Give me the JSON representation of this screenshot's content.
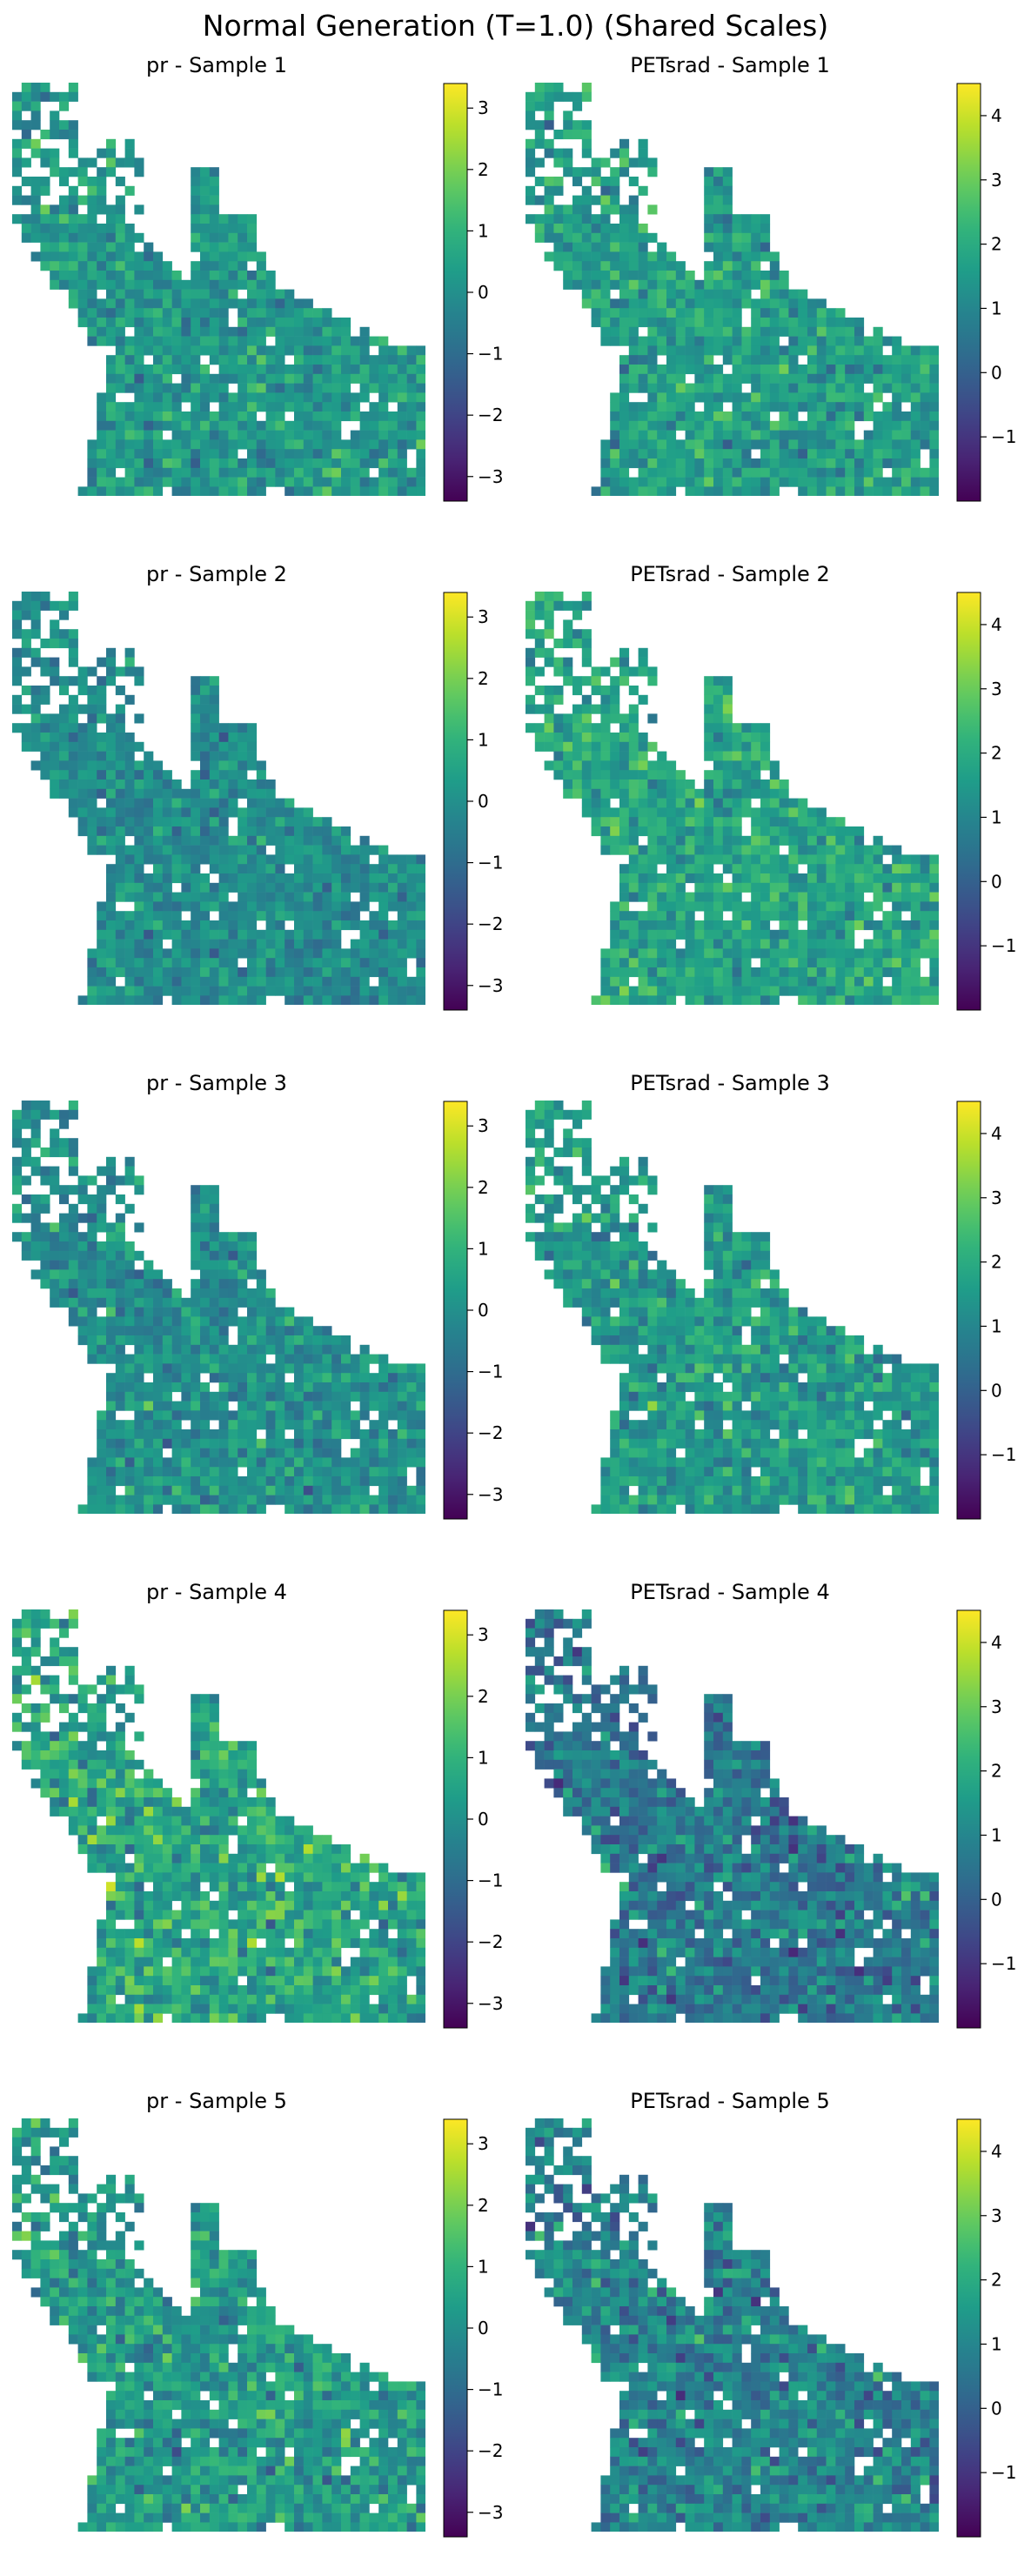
{
  "figure": {
    "title": "Normal Generation (T=1.0) (Shared Scales)"
  },
  "chart_data": [
    {
      "type": "heatmap",
      "title": "pr - Sample 1",
      "variable": "pr",
      "sample": 1,
      "colormap": "viridis",
      "clim": [
        -3.4,
        3.4
      ],
      "colorbar_ticks": [
        3,
        2,
        1,
        0,
        -1,
        -2,
        -3
      ],
      "colorbar_tick_labels": [
        "3",
        "2",
        "1",
        "0",
        "−1",
        "−2",
        "−3"
      ],
      "typical_value": 0.2,
      "spread": 0.45
    },
    {
      "type": "heatmap",
      "title": "PETsrad - Sample 1",
      "variable": "PETsrad",
      "sample": 1,
      "colormap": "viridis",
      "clim": [
        -2.0,
        4.5
      ],
      "colorbar_ticks": [
        4,
        3,
        2,
        1,
        0,
        -1
      ],
      "colorbar_tick_labels": [
        "4",
        "3",
        "2",
        "1",
        "0",
        "−1"
      ],
      "typical_value": 1.6,
      "spread": 0.45
    },
    {
      "type": "heatmap",
      "title": "pr - Sample 2",
      "variable": "pr",
      "sample": 2,
      "colormap": "viridis",
      "clim": [
        -3.4,
        3.4
      ],
      "colorbar_ticks": [
        3,
        2,
        1,
        0,
        -1,
        -2,
        -3
      ],
      "colorbar_tick_labels": [
        "3",
        "2",
        "1",
        "0",
        "−1",
        "−2",
        "−3"
      ],
      "typical_value": -0.1,
      "spread": 0.4
    },
    {
      "type": "heatmap",
      "title": "PETsrad - Sample 2",
      "variable": "PETsrad",
      "sample": 2,
      "colormap": "viridis",
      "clim": [
        -2.0,
        4.5
      ],
      "colorbar_ticks": [
        4,
        3,
        2,
        1,
        0,
        -1
      ],
      "colorbar_tick_labels": [
        "4",
        "3",
        "2",
        "1",
        "0",
        "−1"
      ],
      "typical_value": 1.8,
      "spread": 0.45
    },
    {
      "type": "heatmap",
      "title": "pr - Sample 3",
      "variable": "pr",
      "sample": 3,
      "colormap": "viridis",
      "clim": [
        -3.4,
        3.4
      ],
      "colorbar_ticks": [
        3,
        2,
        1,
        0,
        -1,
        -2,
        -3
      ],
      "colorbar_tick_labels": [
        "3",
        "2",
        "1",
        "0",
        "−1",
        "−2",
        "−3"
      ],
      "typical_value": 0.0,
      "spread": 0.45
    },
    {
      "type": "heatmap",
      "title": "PETsrad - Sample 3",
      "variable": "PETsrad",
      "sample": 3,
      "colormap": "viridis",
      "clim": [
        -2.0,
        4.5
      ],
      "colorbar_ticks": [
        4,
        3,
        2,
        1,
        0,
        -1
      ],
      "colorbar_tick_labels": [
        "4",
        "3",
        "2",
        "1",
        "0",
        "−1"
      ],
      "typical_value": 1.5,
      "spread": 0.45
    },
    {
      "type": "heatmap",
      "title": "pr - Sample 4",
      "variable": "pr",
      "sample": 4,
      "colormap": "viridis",
      "clim": [
        -3.4,
        3.4
      ],
      "colorbar_ticks": [
        3,
        2,
        1,
        0,
        -1,
        -2,
        -3
      ],
      "colorbar_tick_labels": [
        "3",
        "2",
        "1",
        "0",
        "−1",
        "−2",
        "−3"
      ],
      "typical_value": 0.6,
      "spread": 0.6
    },
    {
      "type": "heatmap",
      "title": "PETsrad - Sample 4",
      "variable": "PETsrad",
      "sample": 4,
      "colormap": "viridis",
      "clim": [
        -2.0,
        4.5
      ],
      "colorbar_ticks": [
        4,
        3,
        2,
        1,
        0,
        -1
      ],
      "colorbar_tick_labels": [
        "4",
        "3",
        "2",
        "1",
        "0",
        "−1"
      ],
      "typical_value": 0.6,
      "spread": 0.55
    },
    {
      "type": "heatmap",
      "title": "pr - Sample 5",
      "variable": "pr",
      "sample": 5,
      "colormap": "viridis",
      "clim": [
        -3.4,
        3.4
      ],
      "colorbar_ticks": [
        3,
        2,
        1,
        0,
        -1,
        -2,
        -3
      ],
      "colorbar_tick_labels": [
        "3",
        "2",
        "1",
        "0",
        "−1",
        "−2",
        "−3"
      ],
      "typical_value": 0.3,
      "spread": 0.55
    },
    {
      "type": "heatmap",
      "title": "PETsrad - Sample 5",
      "variable": "PETsrad",
      "sample": 5,
      "colormap": "viridis",
      "clim": [
        -2.0,
        4.5
      ],
      "colorbar_ticks": [
        4,
        3,
        2,
        1,
        0,
        -1
      ],
      "colorbar_tick_labels": [
        "4",
        "3",
        "2",
        "1",
        "0",
        "−1"
      ],
      "typical_value": 0.9,
      "spread": 0.55
    }
  ]
}
